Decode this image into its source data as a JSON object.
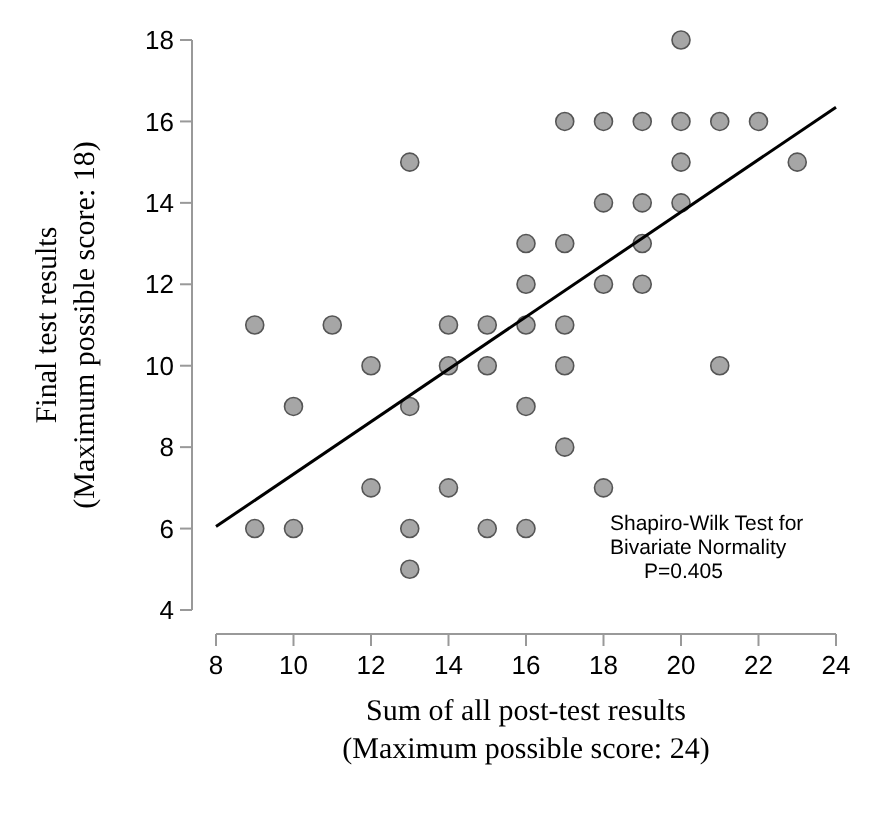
{
  "chart_data": {
    "type": "scatter",
    "xlabel": "Sum of all post-test results\n(Maximum possible score: 24)",
    "ylabel": "Final test results\n(Maximum possible score: 18)",
    "xlim": [
      8,
      24
    ],
    "ylim": [
      4,
      18
    ],
    "xticks": [
      8,
      10,
      12,
      14,
      16,
      18,
      20,
      22,
      24
    ],
    "yticks": [
      4,
      6,
      8,
      10,
      12,
      14,
      16,
      18
    ],
    "grid": false,
    "annotations": [
      "Shapiro-Wilk Test for\nBivariate Normality\nP=0.405"
    ],
    "series": [
      {
        "marker": "circle",
        "color": "#a6a6a6",
        "x": [
          20,
          17,
          18,
          19,
          20,
          21,
          22,
          13,
          20,
          23,
          18,
          19,
          20,
          16,
          17,
          19,
          16,
          18,
          19,
          9,
          11,
          14,
          15,
          16,
          17,
          12,
          14,
          15,
          17,
          21,
          10,
          13,
          16,
          17,
          12,
          14,
          18,
          9,
          10,
          13,
          15,
          16,
          13
        ],
        "values": [
          18,
          16,
          16,
          16,
          16,
          16,
          16,
          15,
          15,
          15,
          14,
          14,
          14,
          13,
          13,
          13,
          12,
          12,
          12,
          11,
          11,
          11,
          11,
          11,
          11,
          10,
          10,
          10,
          10,
          10,
          9,
          9,
          9,
          8,
          7,
          7,
          7,
          6,
          6,
          6,
          6,
          6,
          5
        ]
      },
      {
        "type": "line",
        "marker": "none",
        "color": "#000000",
        "x": [
          8,
          24
        ],
        "values": [
          6.05,
          16.35
        ]
      }
    ]
  }
}
